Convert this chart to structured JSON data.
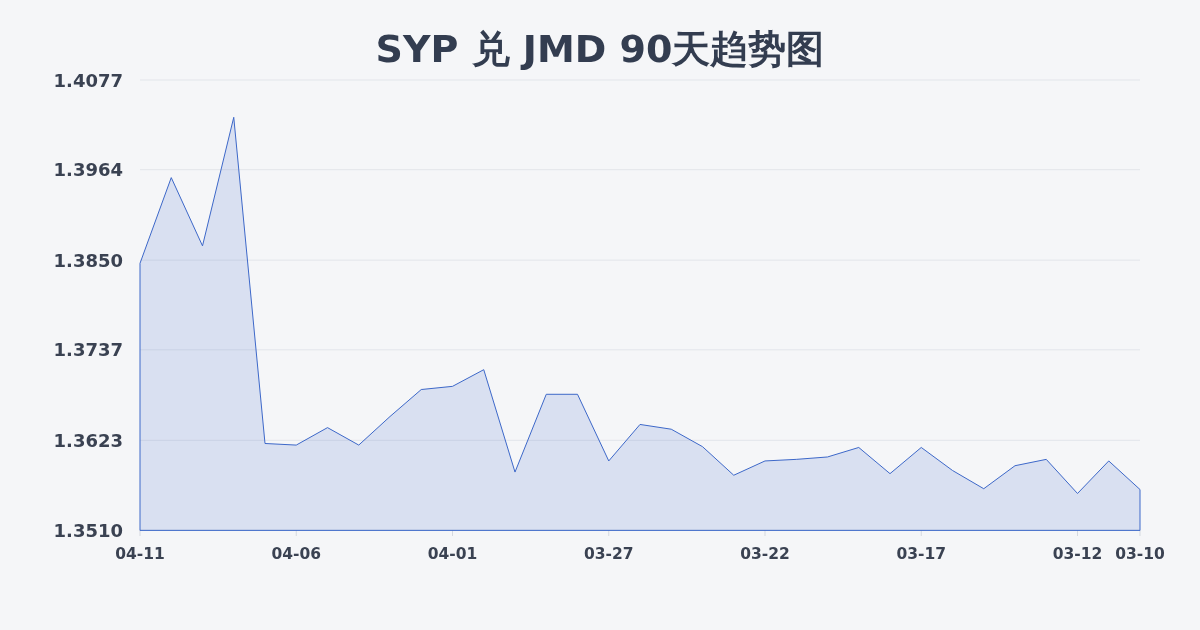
{
  "chart_data": {
    "type": "area",
    "title": "SYP 兑 JMD 90天趋势图",
    "categories": [
      "04-11",
      null,
      null,
      null,
      null,
      "04-06",
      null,
      null,
      null,
      null,
      "04-01",
      null,
      null,
      null,
      null,
      "03-27",
      null,
      null,
      null,
      null,
      "03-22",
      null,
      null,
      null,
      null,
      "03-17",
      null,
      null,
      null,
      null,
      "03-12",
      null,
      "03-10"
    ],
    "values": [
      1.3846,
      1.3954,
      1.3868,
      1.403,
      1.3619,
      1.3617,
      1.3639,
      1.3617,
      1.3653,
      1.3687,
      1.3691,
      1.3712,
      1.3583,
      1.3681,
      1.3681,
      1.3597,
      1.3643,
      1.3637,
      1.3615,
      1.3579,
      1.3597,
      1.3599,
      1.3602,
      1.3614,
      1.3581,
      1.3614,
      1.3585,
      1.3562,
      1.3591,
      1.3599,
      1.3556,
      1.3597,
      1.3561
    ],
    "color": "#3d68c9",
    "ylim": [
      1.351,
      1.4077
    ],
    "yticks": [
      {
        "value": 1.351,
        "label": "1.3510"
      },
      1.3623,
      1.3737,
      {
        "value": 1.385,
        "label": "1.3850"
      },
      1.3964,
      1.4077
    ],
    "grid": "y"
  }
}
